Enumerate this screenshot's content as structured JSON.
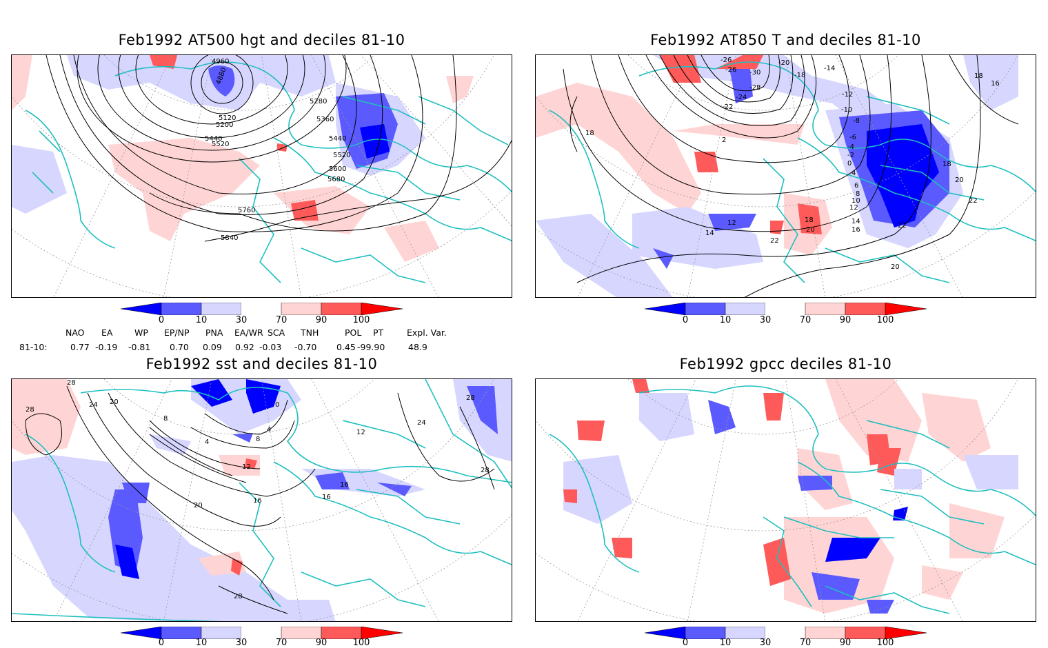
{
  "panels": [
    {
      "id": "z500",
      "title": "Feb1992 AT500 hgt and deciles 81-10",
      "contour_labels": [
        "4960",
        "4880",
        "5120",
        "5200",
        "5280",
        "5360",
        "5440",
        "5520",
        "5600",
        "5680",
        "5760",
        "5840",
        "5520",
        "5440"
      ]
    },
    {
      "id": "t850",
      "title": "Feb1992 AT850 T and deciles 81-10",
      "contour_labels": [
        "-26",
        "-26",
        "-30",
        "-28",
        "-24",
        "-22",
        "-20",
        "-18",
        "-14",
        "-12",
        "-10",
        "-8",
        "-6",
        "-4",
        "-2",
        "0",
        "2",
        "4",
        "6",
        "8",
        "10",
        "12",
        "14",
        "16",
        "18",
        "20",
        "22",
        "22",
        "20",
        "18",
        "16",
        "18",
        "12",
        "14",
        "18",
        "20",
        "22"
      ]
    },
    {
      "id": "sst",
      "title": "Feb1992 sst and deciles 81-10",
      "contour_labels": [
        "28",
        "28",
        "24",
        "20",
        "0",
        "4",
        "8",
        "12",
        "16",
        "16",
        "16",
        "20",
        "24",
        "28",
        "28",
        "28",
        "4",
        "8",
        "12"
      ]
    },
    {
      "id": "gpcc",
      "title": "Feb1992 gpcc deciles 81-10",
      "contour_labels": []
    }
  ],
  "colorbar": {
    "ticks": [
      "0",
      "10",
      "30",
      "70",
      "90",
      "100"
    ],
    "colors": {
      "below0": "#0000ff",
      "0_10": "#5a5aff",
      "10_30": "#d6d6ff",
      "30_70": "#ffffff",
      "70_90": "#ffd4d4",
      "90_100": "#ff5a5a",
      "above100": "#ff0000"
    }
  },
  "indices": {
    "headers": [
      "NAO",
      "EA",
      "WP",
      "EP/NP",
      "PNA",
      "EA/WR",
      "SCA",
      "TNH",
      "POL",
      "PT",
      "Expl. Var."
    ],
    "row_label": "81-10:",
    "values": [
      "0.77",
      "-0.19",
      "-0.81",
      "0.70",
      "0.09",
      "0.92",
      "-0.03",
      "-0.70",
      "0.45",
      "-99.90",
      "48.9"
    ]
  },
  "colors": {
    "coast": "#1fbfbf",
    "contour": "#000000",
    "grid": "#999999"
  }
}
